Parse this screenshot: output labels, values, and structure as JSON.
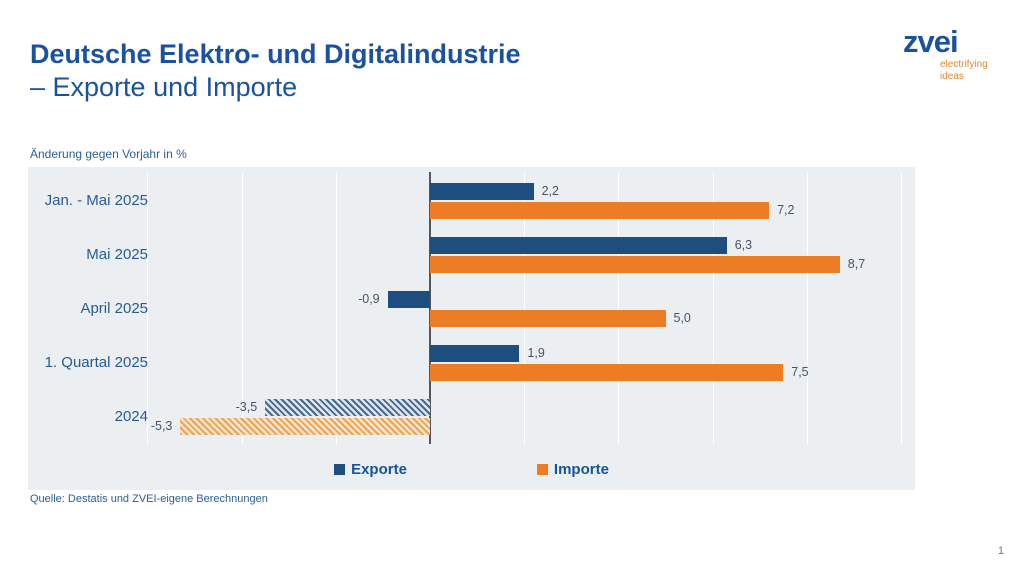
{
  "header": {
    "title_line1": "Deutsche Elektro- und Digitalindustrie",
    "title_line2": "– Exporte und Importe",
    "logo": {
      "text": "zvei",
      "tagline_line1": "electrifying",
      "tagline_line2": "ideas"
    }
  },
  "chart": {
    "axis_note": "Änderung gegen Vorjahr in %",
    "source": "Quelle: Destatis und ZVEI-eigene Berechnungen"
  },
  "chart_data": {
    "type": "bar",
    "orientation": "horizontal",
    "title": "Deutsche Elektro- und Digitalindustrie – Exporte und Importe",
    "xlabel": "Änderung gegen Vorjahr in %",
    "categories": [
      "Jan. - Mai 2025",
      "Mai 2025",
      "April 2025",
      "1. Quartal 2025",
      "2024"
    ],
    "series": [
      {
        "name": "Exporte",
        "color": "#1E4D80",
        "hatch_fg": "#44688F",
        "hatch_bg": "#DDE4EB",
        "values": [
          2.2,
          6.3,
          -0.9,
          1.9,
          -3.5
        ],
        "labels": [
          "2,2",
          "6,3",
          "-0,9",
          "1,9",
          "-3,5"
        ]
      },
      {
        "name": "Importe",
        "color": "#EC7D25",
        "hatch_fg": "#E9A45C",
        "hatch_bg": "#F6E3C7",
        "values": [
          7.2,
          8.7,
          5.0,
          7.5,
          -5.3
        ],
        "labels": [
          "7,2",
          "8,7",
          "5,0",
          "7,5",
          "-5,3"
        ]
      }
    ],
    "hatched_categories": [
      "2024"
    ],
    "xlim": [
      -6,
      10
    ],
    "gridline_step": 2,
    "grid": true,
    "legend_position": "bottom",
    "plot_background": "#ECEFF1"
  },
  "footer": {
    "page_number": "1"
  },
  "colors": {
    "brand_blue": "#1A52A0",
    "brand_orange": "#E8862D",
    "export_bar": "#1E4D80",
    "import_bar": "#EC7D25",
    "value_label": "#44546A",
    "plot_background": "#ECEFF1"
  }
}
